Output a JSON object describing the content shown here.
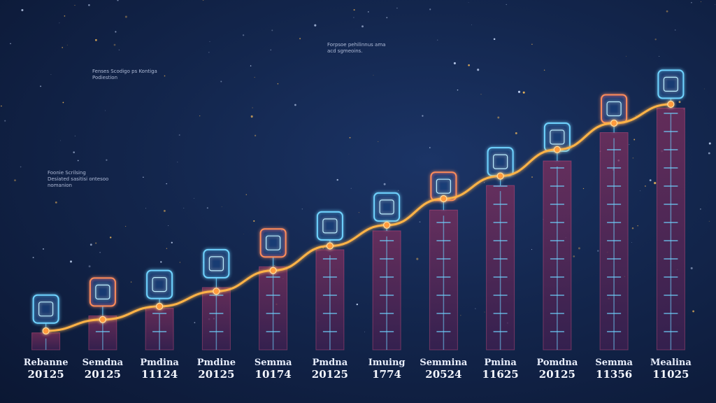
{
  "chart_data": {
    "type": "bar",
    "categories": [
      {
        "name": "Rebanne",
        "year": "20125"
      },
      {
        "name": "Semdna",
        "year": "20125"
      },
      {
        "name": "Pmdina",
        "year": "11124"
      },
      {
        "name": "Pmdine",
        "year": "20125"
      },
      {
        "name": "Semma",
        "year": "10174"
      },
      {
        "name": "Pmdna",
        "year": "20125"
      },
      {
        "name": "Imuing",
        "year": "1774"
      },
      {
        "name": "Semmina",
        "year": "20524"
      },
      {
        "name": "Pmina",
        "year": "11625"
      },
      {
        "name": "Pomdna",
        "year": "20125"
      },
      {
        "name": "Semma",
        "year": "11356"
      },
      {
        "name": "Mealina",
        "year": "11025"
      }
    ],
    "values": [
      9,
      18,
      22,
      33,
      44,
      53,
      63,
      74,
      87,
      100,
      115,
      128
    ],
    "line_values": [
      10,
      16,
      23,
      31,
      42,
      55,
      66,
      80,
      92,
      106,
      120,
      130
    ],
    "ylim": [
      0,
      150
    ],
    "icons": [
      "screen-icon",
      "coin-icon",
      "rocket-icon",
      "tower-icon",
      "ring-icon",
      "dome-icon",
      "tablet-icon",
      "spire-icon",
      "book-icon",
      "ship-icon",
      "shield-icon",
      "crystal-icon"
    ],
    "colors": {
      "bar_fill": "#7a2e57",
      "bar_edge": "#ff5f8f",
      "trend": "#ffb347",
      "icon": "#6fd3ff",
      "baseline": "#f0a040"
    },
    "annotations": [
      {
        "text": "Fenses Scodigo ps Kontiga\nPodiestion"
      },
      {
        "text": "Foonie Scrilsing\nDesiated sasitisi ontesoo\nnomanion"
      },
      {
        "text": "Forpsoe pehilinnus ama\nacd sgmeoins."
      }
    ],
    "grid": false,
    "legend": "none"
  }
}
